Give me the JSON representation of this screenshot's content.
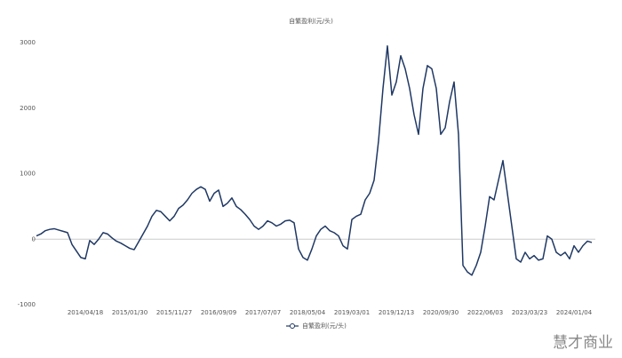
{
  "chart_data": {
    "type": "line",
    "title": "自繁盈利(元/头)",
    "categories": [
      null,
      null,
      null,
      null,
      null,
      null,
      null,
      null,
      null,
      null,
      null,
      "2014/04/18",
      null,
      null,
      null,
      null,
      null,
      null,
      null,
      null,
      null,
      "2015/01/30",
      null,
      null,
      null,
      null,
      null,
      null,
      null,
      null,
      null,
      "2015/11/27",
      null,
      null,
      null,
      null,
      null,
      null,
      null,
      null,
      null,
      "2016/09/09",
      null,
      null,
      null,
      null,
      null,
      null,
      null,
      null,
      null,
      "2017/07/07",
      null,
      null,
      null,
      null,
      null,
      null,
      null,
      null,
      null,
      "2018/05/04",
      null,
      null,
      null,
      null,
      null,
      null,
      null,
      null,
      null,
      "2019/03/01",
      null,
      null,
      null,
      null,
      null,
      null,
      null,
      null,
      null,
      "2019/12/13",
      null,
      null,
      null,
      null,
      null,
      null,
      null,
      null,
      null,
      "2020/09/30",
      null,
      null,
      null,
      null,
      null,
      null,
      null,
      null,
      null,
      "2022/06/03",
      null,
      null,
      null,
      null,
      null,
      null,
      null,
      null,
      null,
      "2023/03/23",
      null,
      null,
      null,
      null,
      null,
      null,
      null,
      null,
      null,
      "2024/01/04",
      null,
      null,
      null,
      null
    ],
    "series": [
      {
        "name": "自繁盈利(元/头)",
        "color": "#1f3864",
        "values": [
          50,
          80,
          130,
          150,
          160,
          140,
          120,
          100,
          -80,
          -180,
          -280,
          -300,
          -20,
          -80,
          0,
          100,
          80,
          20,
          -30,
          -60,
          -100,
          -140,
          -160,
          -40,
          80,
          200,
          350,
          440,
          420,
          350,
          280,
          350,
          470,
          520,
          600,
          700,
          760,
          800,
          760,
          580,
          700,
          750,
          500,
          550,
          630,
          500,
          450,
          380,
          300,
          200,
          150,
          200,
          280,
          250,
          200,
          230,
          280,
          290,
          250,
          -150,
          -280,
          -320,
          -150,
          50,
          150,
          200,
          130,
          100,
          50,
          -100,
          -150,
          300,
          350,
          380,
          600,
          700,
          900,
          1500,
          2300,
          2950,
          2200,
          2400,
          2800,
          2600,
          2300,
          1900,
          1600,
          2300,
          2650,
          2600,
          2300,
          1600,
          1700,
          2100,
          2400,
          1600,
          -400,
          -500,
          -550,
          -400,
          -200,
          200,
          650,
          600,
          900,
          1200,
          700,
          200,
          -300,
          -350,
          -200,
          -300,
          -250,
          -320,
          -300,
          50,
          0,
          -200,
          -250,
          -200,
          -300,
          -100,
          -200,
          -100,
          -30,
          -50
        ]
      }
    ],
    "ylim": [
      -1000,
      3000
    ],
    "yticks": [
      3000,
      2000,
      1000,
      0,
      -1000
    ],
    "legend": "bottom",
    "watermark": "慧才商业"
  }
}
